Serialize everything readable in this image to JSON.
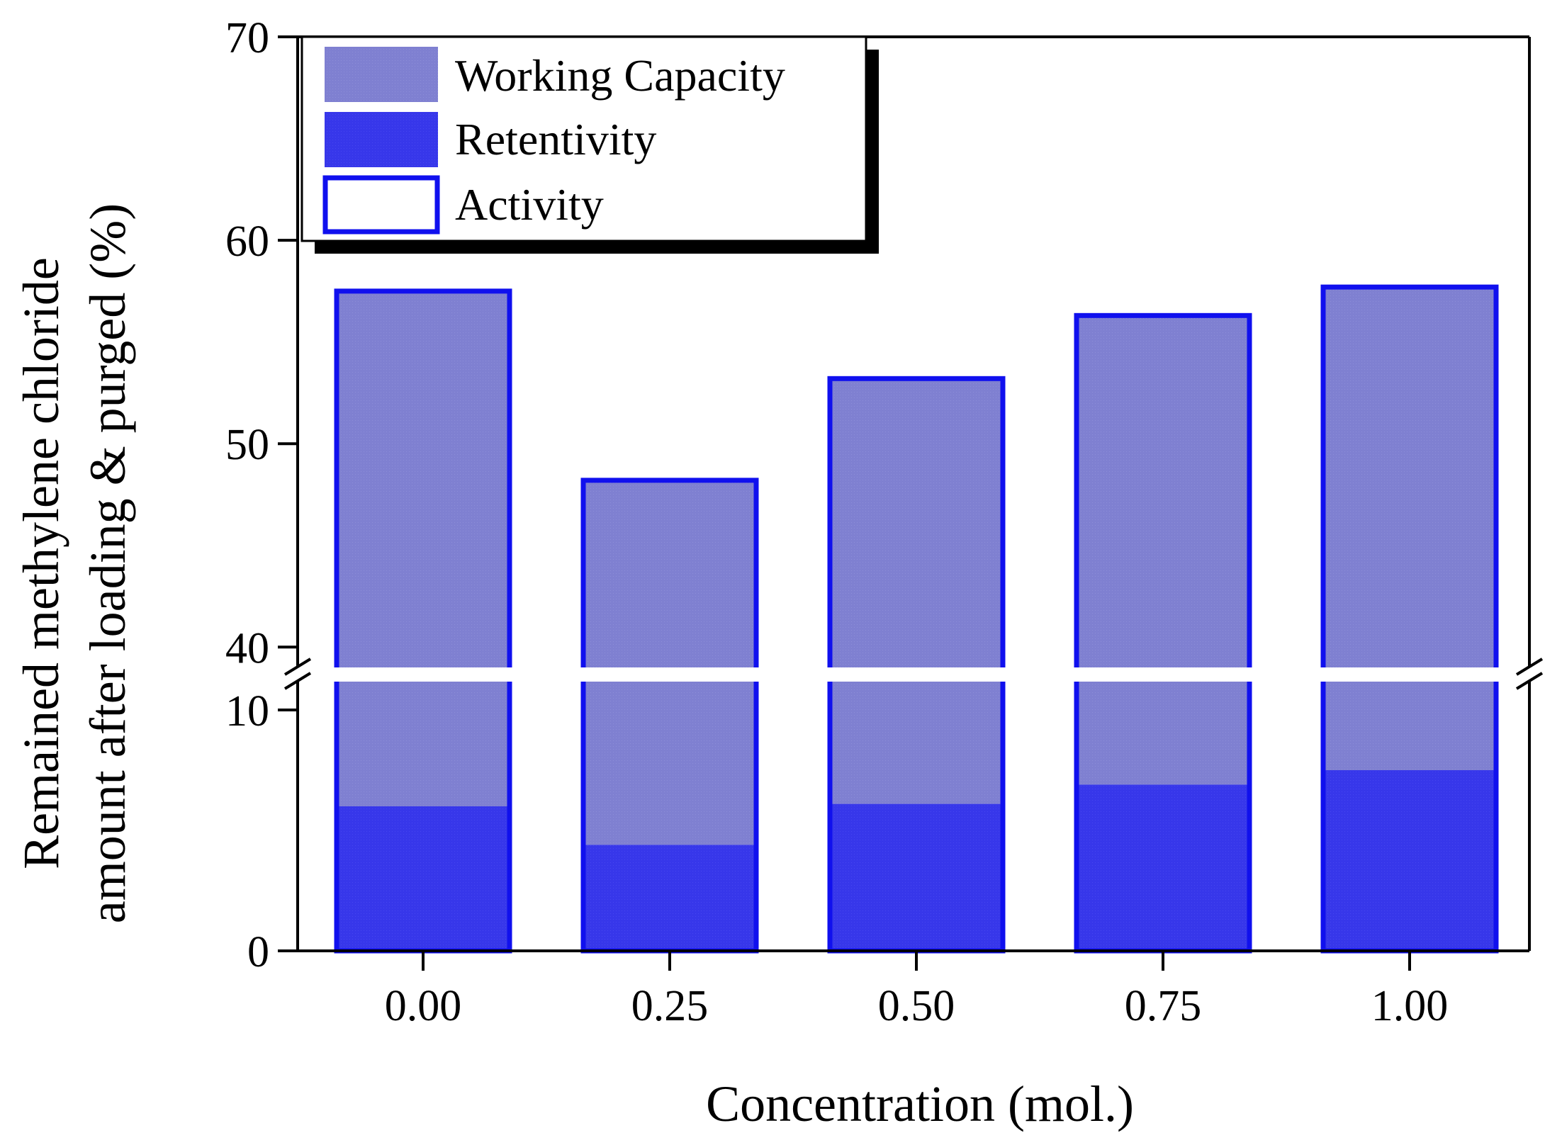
{
  "chart_data": {
    "type": "bar",
    "title": "",
    "xlabel": "Concentration (mol.)",
    "ylabel_lines": [
      "Remained methylene chloride",
      "amount after loading & purged (%)"
    ],
    "categories": [
      "0.00",
      "0.25",
      "0.50",
      "0.75",
      "1.00"
    ],
    "series": [
      {
        "name": "Working Capacity",
        "values": [
          51.5,
          43.8,
          47.1,
          49.4,
          50.2
        ]
      },
      {
        "name": "Retentivity",
        "values": [
          6.0,
          4.4,
          6.1,
          6.9,
          7.5
        ]
      },
      {
        "name": "Activity",
        "values": [
          57.5,
          48.2,
          53.2,
          56.3,
          57.7
        ]
      }
    ],
    "y_axis_break": {
      "lower_range": [
        0,
        10
      ],
      "upper_range": [
        39,
        70
      ]
    },
    "yticks_lower": [
      "0",
      "10"
    ],
    "yticks_upper": [
      "40",
      "50",
      "60",
      "70"
    ],
    "legend_position": "top-left",
    "colors": {
      "working_capacity": "#7f80d1",
      "retentivity": "#3737ea",
      "activity_outline": "#1010ee",
      "axis": "#000000"
    }
  }
}
